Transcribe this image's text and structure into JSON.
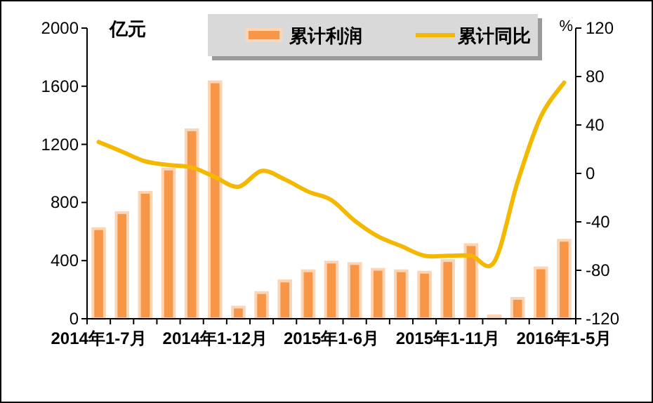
{
  "chart_data": {
    "type": "bar",
    "ylabel": "亿元",
    "y2label": "%",
    "categories": [
      "2014年1-7月",
      null,
      null,
      null,
      null,
      "2014年1-12月",
      null,
      null,
      null,
      null,
      "2015年1-6月",
      null,
      null,
      null,
      null,
      "2015年1-11月",
      null,
      null,
      null,
      null,
      "2016年1-5月"
    ],
    "series": [
      {
        "name": "累计利润",
        "color": "#f79646",
        "values": [
          620,
          730,
          870,
          1030,
          1300,
          1630,
          80,
          180,
          260,
          330,
          390,
          380,
          340,
          330,
          320,
          400,
          510,
          20,
          140,
          350,
          540
        ]
      },
      {
        "name": "累计同比",
        "type": "line",
        "axis": "y2",
        "color": "#f5b800",
        "values": [
          26,
          18,
          10,
          7,
          5,
          -3,
          -11,
          2,
          -5,
          -15,
          -22,
          -39,
          -52,
          -60,
          -68,
          -68,
          -68,
          -73,
          -7,
          47,
          75
        ]
      }
    ],
    "ylim": [
      0,
      2000
    ],
    "yticks": [
      0,
      400,
      800,
      1200,
      1600,
      2000
    ],
    "y2lim": [
      -120,
      120
    ],
    "y2ticks": [
      -120,
      -80,
      -40,
      0,
      40,
      80,
      120
    ],
    "grid": false,
    "legend": "top",
    "marker": "none",
    "line_style": "solid"
  }
}
